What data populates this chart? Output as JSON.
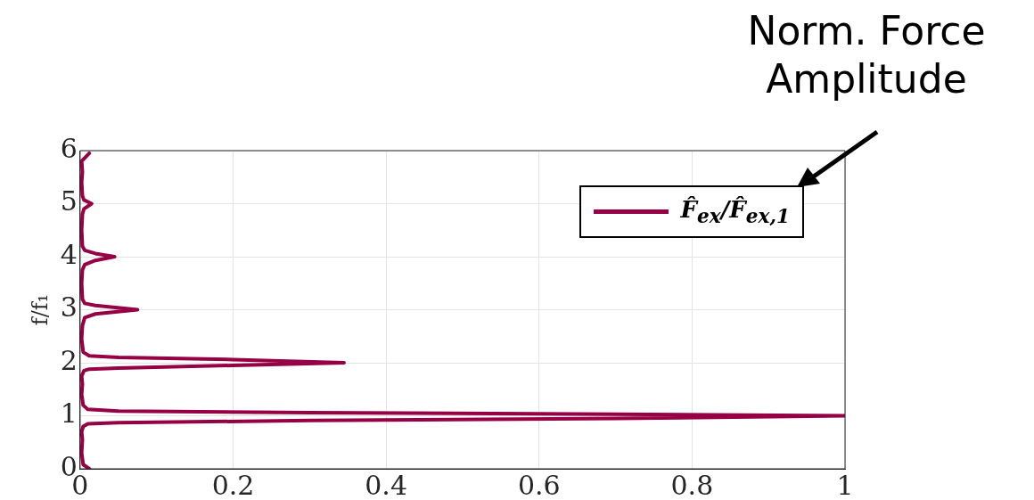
{
  "chart_data": {
    "type": "line",
    "ylabel": "f/f₁",
    "annotations": [
      "Norm. Force Amplitude"
    ],
    "xlim": [
      0,
      1
    ],
    "xticks": [
      0,
      0.2,
      0.4,
      0.6,
      0.8,
      1
    ],
    "ylim": [
      0,
      6
    ],
    "yticks": [
      0,
      1,
      2,
      3,
      4,
      5,
      6
    ],
    "grid": true,
    "legend": "top right",
    "marker": "none",
    "line_style": "solid",
    "series": [
      {
        "name": "F̂$_{ex}$/F̂$_{ex,1}$",
        "color": "#960045",
        "x": [
          0.012,
          0.004,
          0.002,
          0.003,
          0.002,
          0.004,
          0.01,
          0.05,
          0.3,
          0.7,
          1,
          0.7,
          0.3,
          0.05,
          0.01,
          0.004,
          0.002,
          0.003,
          0.002,
          0.005,
          0.012,
          0.05,
          0.2,
          0.345,
          0.2,
          0.05,
          0.012,
          0.004,
          0.002,
          0.003,
          0.006,
          0.02,
          0.075,
          0.02,
          0.006,
          0.003,
          0.002,
          0.003,
          0.006,
          0.02,
          0.045,
          0.02,
          0.006,
          0.003,
          0.002,
          0.003,
          0.005,
          0.015,
          0.005,
          0.003,
          0.002,
          0.003,
          0.002,
          0.012
        ],
        "values": [
          0.0,
          0.08,
          0.3,
          0.55,
          0.7,
          0.8,
          0.85,
          0.87,
          0.91,
          0.95,
          1.0,
          1.03,
          1.06,
          1.09,
          1.12,
          1.2,
          1.4,
          1.6,
          1.75,
          1.85,
          1.88,
          1.9,
          1.95,
          2.0,
          2.06,
          2.1,
          2.13,
          2.2,
          2.45,
          2.7,
          2.85,
          2.92,
          3.0,
          3.08,
          3.12,
          3.2,
          3.5,
          3.75,
          3.85,
          3.93,
          4.0,
          4.06,
          4.12,
          4.2,
          4.5,
          4.8,
          4.9,
          5.0,
          5.07,
          5.15,
          5.4,
          5.6,
          5.8,
          5.95
        ]
      }
    ]
  }
}
